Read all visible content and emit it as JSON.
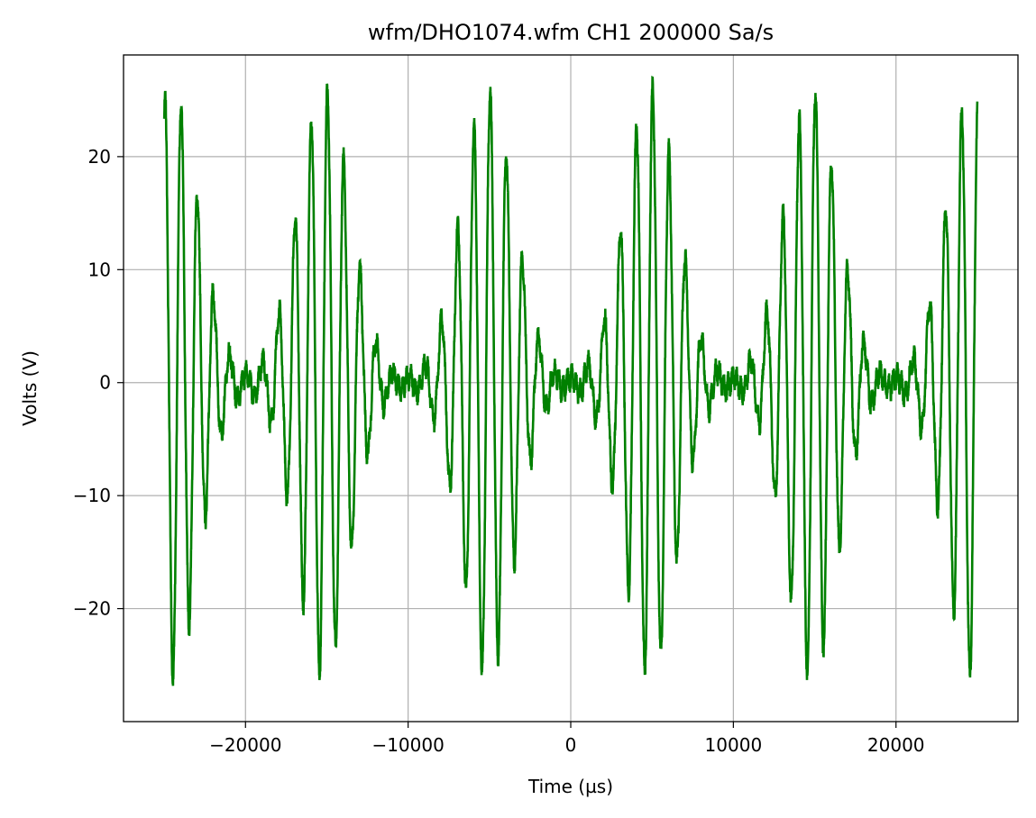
{
  "chart_data": {
    "type": "line",
    "title": "wfm/DHO1074.wfm  CH1  200000 Sa/s",
    "xlabel": "Time (µs)",
    "ylabel": "Volts (V)",
    "xlim": [
      -27500,
      27500
    ],
    "ylim": [
      -30,
      29
    ],
    "xticks": [
      -20000,
      -10000,
      0,
      10000,
      20000
    ],
    "xtick_labels": [
      "−20000",
      "−10000",
      "0",
      "10000",
      "20000"
    ],
    "yticks": [
      -20,
      -10,
      0,
      10,
      20
    ],
    "ytick_labels": [
      "−20",
      "−10",
      "0",
      "10",
      "20"
    ],
    "grid": true,
    "series": [
      {
        "color": "#008000",
        "sampling": "200000 Sa/s",
        "x_range": [
          -25000,
          25000
        ],
        "description_points": {
          "burst_envelope_peaks_x": [
            -24500,
            -15200,
            -5100,
            4900,
            14800,
            24700
          ],
          "peak_amplitude_V": 26,
          "carrier_period_us": 1000
        }
      }
    ]
  }
}
